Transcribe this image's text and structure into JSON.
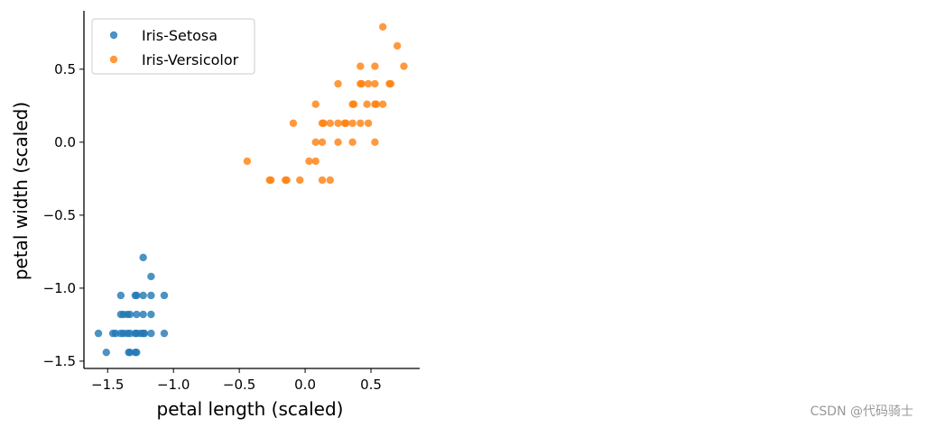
{
  "chart_data": {
    "type": "scatter",
    "title": "",
    "xlabel": "petal length (scaled)",
    "ylabel": "petal width (scaled)",
    "xlim": [
      -1.68,
      0.87
    ],
    "ylim": [
      -1.55,
      0.9
    ],
    "xticks": [
      -1.5,
      -1.0,
      -0.5,
      0.0,
      0.5
    ],
    "xtick_labels": [
      "−1.5",
      "−1.0",
      "−0.5",
      "0.0",
      "0.5"
    ],
    "yticks": [
      -1.5,
      -1.0,
      -0.5,
      0.0,
      0.5
    ],
    "ytick_labels": [
      "−1.5",
      "−1.0",
      "−0.5",
      "0.0",
      "0.5"
    ],
    "grid": false,
    "legend_position": "top-left",
    "series": [
      {
        "name": "Iris-Setosa",
        "color": "#1f77b4",
        "points": [
          [
            -1.23,
            -0.79
          ],
          [
            -1.17,
            -0.92
          ],
          [
            -1.4,
            -1.05
          ],
          [
            -1.29,
            -1.05
          ],
          [
            -1.28,
            -1.05
          ],
          [
            -1.23,
            -1.05
          ],
          [
            -1.17,
            -1.05
          ],
          [
            -1.07,
            -1.05
          ],
          [
            -1.4,
            -1.18
          ],
          [
            -1.38,
            -1.18
          ],
          [
            -1.35,
            -1.18
          ],
          [
            -1.33,
            -1.18
          ],
          [
            -1.28,
            -1.18
          ],
          [
            -1.23,
            -1.18
          ],
          [
            -1.17,
            -1.18
          ],
          [
            -1.57,
            -1.31
          ],
          [
            -1.46,
            -1.31
          ],
          [
            -1.44,
            -1.31
          ],
          [
            -1.4,
            -1.31
          ],
          [
            -1.38,
            -1.31
          ],
          [
            -1.35,
            -1.31
          ],
          [
            -1.33,
            -1.31
          ],
          [
            -1.29,
            -1.31
          ],
          [
            -1.28,
            -1.31
          ],
          [
            -1.25,
            -1.31
          ],
          [
            -1.23,
            -1.31
          ],
          [
            -1.22,
            -1.31
          ],
          [
            -1.17,
            -1.31
          ],
          [
            -1.07,
            -1.31
          ],
          [
            -1.51,
            -1.44
          ],
          [
            -1.34,
            -1.44
          ],
          [
            -1.33,
            -1.44
          ],
          [
            -1.29,
            -1.44
          ],
          [
            -1.28,
            -1.44
          ]
        ]
      },
      {
        "name": "Iris-Versicolor",
        "color": "#ff7f0e",
        "points": [
          [
            0.59,
            0.79
          ],
          [
            0.7,
            0.66
          ],
          [
            0.42,
            0.52
          ],
          [
            0.53,
            0.52
          ],
          [
            0.75,
            0.52
          ],
          [
            0.25,
            0.4
          ],
          [
            0.42,
            0.4
          ],
          [
            0.43,
            0.4
          ],
          [
            0.48,
            0.4
          ],
          [
            0.53,
            0.4
          ],
          [
            0.64,
            0.4
          ],
          [
            0.65,
            0.4
          ],
          [
            0.08,
            0.26
          ],
          [
            0.36,
            0.26
          ],
          [
            0.37,
            0.26
          ],
          [
            0.47,
            0.26
          ],
          [
            0.53,
            0.26
          ],
          [
            0.54,
            0.26
          ],
          [
            0.59,
            0.26
          ],
          [
            -0.09,
            0.13
          ],
          [
            0.13,
            0.13
          ],
          [
            0.14,
            0.13
          ],
          [
            0.19,
            0.13
          ],
          [
            0.25,
            0.13
          ],
          [
            0.3,
            0.13
          ],
          [
            0.31,
            0.13
          ],
          [
            0.36,
            0.13
          ],
          [
            0.42,
            0.13
          ],
          [
            0.48,
            0.13
          ],
          [
            0.08,
            0.0
          ],
          [
            0.13,
            0.0
          ],
          [
            0.25,
            0.0
          ],
          [
            0.36,
            0.0
          ],
          [
            0.53,
            0.0
          ],
          [
            -0.44,
            -0.13
          ],
          [
            0.03,
            -0.13
          ],
          [
            0.08,
            -0.13
          ],
          [
            -0.26,
            -0.26
          ],
          [
            -0.27,
            -0.26
          ],
          [
            -0.15,
            -0.26
          ],
          [
            -0.14,
            -0.26
          ],
          [
            -0.04,
            -0.26
          ],
          [
            0.13,
            -0.26
          ],
          [
            0.19,
            -0.26
          ]
        ]
      }
    ]
  },
  "watermark": "CSDN @代码骑士"
}
